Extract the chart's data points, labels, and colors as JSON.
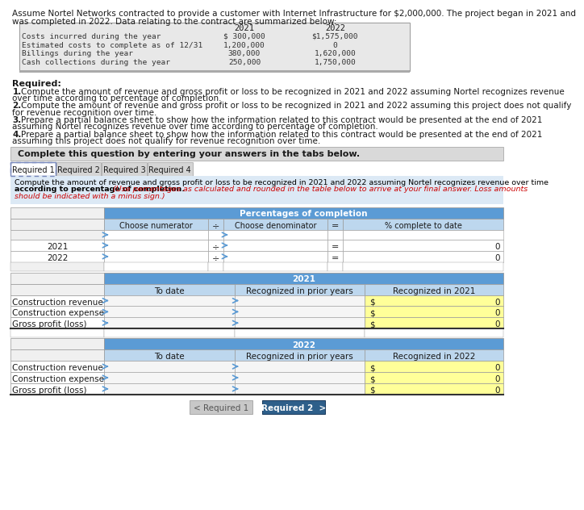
{
  "title_line1": "Assume Nortel Networks contracted to provide a customer with Internet Infrastructure for $2,000,000. The project began in 2021 and",
  "title_line2": "was completed in 2022. Data relating to the contract are summarized below:",
  "table1_rows": [
    [
      "Costs incurred during the year",
      "$ 300,000",
      "$1,575,000"
    ],
    [
      "Estimated costs to complete as of 12/31",
      "1,200,000",
      "0"
    ],
    [
      "Billings during the year",
      "380,000",
      "1,620,000"
    ],
    [
      "Cash collections during the year",
      "250,000",
      "1,750,000"
    ]
  ],
  "required_label": "Required:",
  "req1": [
    "1.",
    "Compute the amount of revenue and gross profit or loss to be recognized in 2021 and 2022 assuming Nortel recognizes revenue",
    "over time according to percentage of completion."
  ],
  "req2": [
    "2.",
    "Compute the amount of revenue and gross profit or loss to be recognized in 2021 and 2022 assuming this project does not qualify",
    "for revenue recognition over time."
  ],
  "req3": [
    "3.",
    "Prepare a partial balance sheet to show how the information related to this contract would be presented at the end of 2021",
    "assuming Nortel recognizes revenue over time according to percentage of completion."
  ],
  "req4": [
    "4.",
    "Prepare a partial balance sheet to show how the information related to this contract would be presented at the end of 2021",
    "assuming this project does not qualify for revenue recognition over time."
  ],
  "complete_banner": "Complete this question by entering your answers in the tabs below.",
  "tabs": [
    "Required 1",
    "Required 2",
    "Required 3",
    "Required 4"
  ],
  "instr_line1": "Compute the amount of revenue and gross profit or loss to be recognized in 2021 and 2022 assuming Nortel recognizes revenue over time",
  "instr_line2": "according to percentage of completion. (Use percentages as calculated and rounded in the table below to arrive at your final answer. Loss amounts",
  "instr_line3": "should be indicated with a minus sign.)",
  "pct_header": "Percentages of completion",
  "pct_col1": "Choose numerator",
  "pct_div": "÷",
  "pct_col2": "Choose denominator",
  "pct_eq": "=",
  "pct_col3": "% complete to date",
  "pct_rows": [
    "2021",
    "2022"
  ],
  "section_2021": "2021",
  "section_2022": "2022",
  "sub_col1": "To date",
  "sub_col2": "Recognized in prior years",
  "recog_2021": "Recognized in 2021",
  "recog_2022": "Recognized in 2022",
  "row_labels": [
    "Construction revenue",
    "Construction expense",
    "Gross profit (loss)"
  ],
  "bg_white": "#ffffff",
  "bg_gray": "#e8e8e8",
  "bg_light_gray": "#f0f0f0",
  "bg_blue_hdr": "#5b9bd5",
  "bg_blue_sub": "#bdd7ee",
  "bg_yellow": "#ffff99",
  "bg_banner": "#d9d9d9",
  "bg_instr": "#dce9f5",
  "nav_left_bg": "#c8c8c8",
  "nav_right_bg": "#2e5f8a",
  "text_dark": "#1a1a1a",
  "text_red": "#cc0000",
  "text_white": "#ffffff",
  "border": "#999999",
  "border_dark": "#333333"
}
